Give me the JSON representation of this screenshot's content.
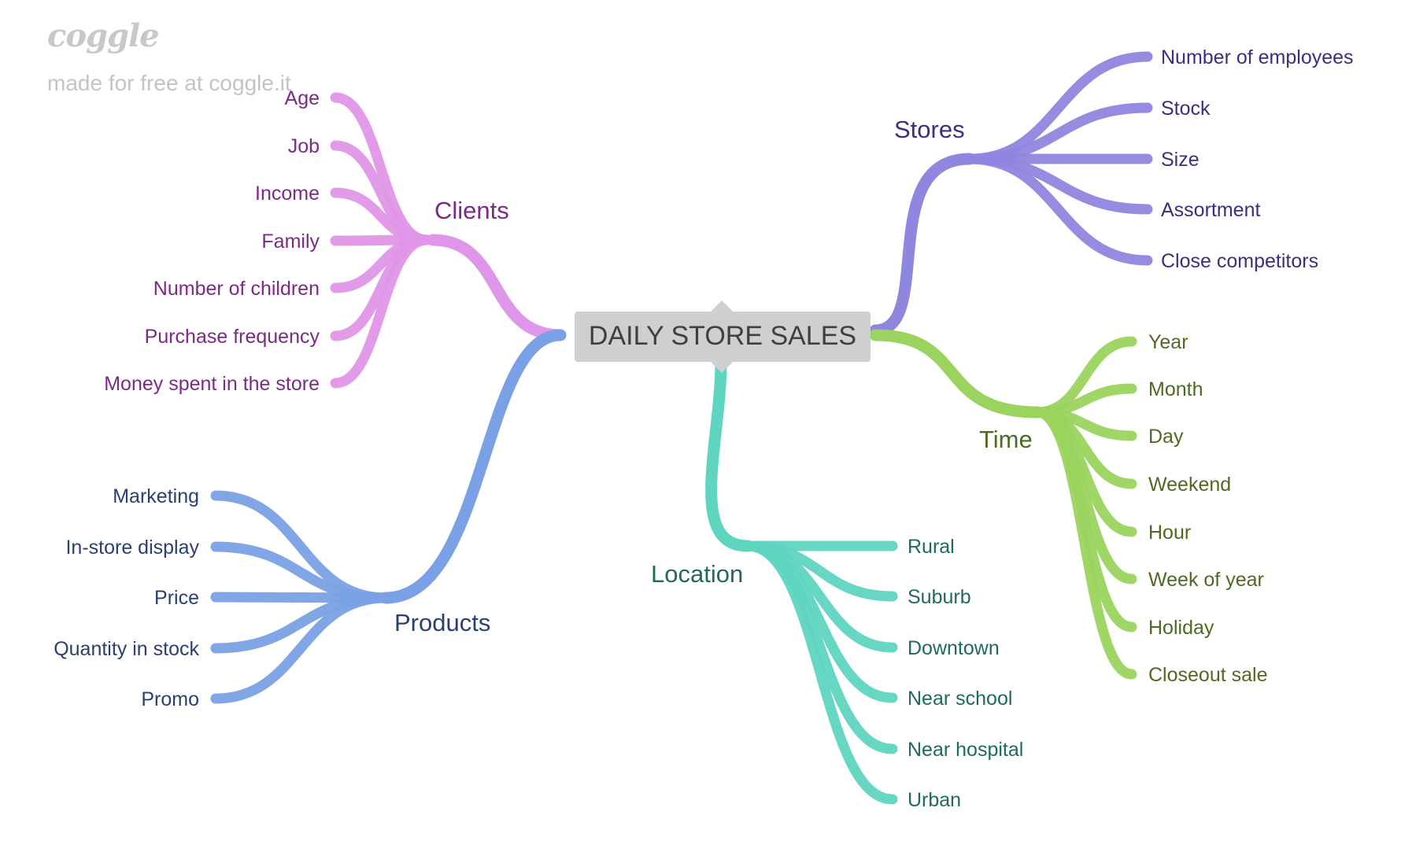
{
  "watermark": {
    "logo": "coggle",
    "note": "made for free at coggle.it"
  },
  "root": {
    "label": "DAILY STORE SALES"
  },
  "branches": {
    "clients": {
      "label": "Clients",
      "color": "#df96e8",
      "text_color": "#7b2a86",
      "items": [
        "Age",
        "Job",
        "Income",
        "Family",
        "Number of children",
        "Purchase frequency",
        "Money spent in the store"
      ]
    },
    "products": {
      "label": "Products",
      "color": "#7aa1e5",
      "text_color": "#2a3f72",
      "items": [
        "Marketing",
        "In-store display",
        "Price",
        "Quantity in stock",
        "Promo"
      ]
    },
    "location": {
      "label": "Location",
      "color": "#5fd5c0",
      "text_color": "#1e6b5e",
      "items": [
        "Rural",
        "Suburb",
        "Downtown",
        "Near school",
        "Near hospital",
        "Urban"
      ]
    },
    "stores": {
      "label": "Stores",
      "color": "#8f86e0",
      "text_color": "#3a2f80",
      "items": [
        "Number of employees",
        "Stock",
        "Size",
        "Assortment",
        "Close competitors"
      ]
    },
    "time": {
      "label": "Time",
      "color": "#9ad45e",
      "text_color": "#4e6a22",
      "items": [
        "Year",
        "Month",
        "Day",
        "Weekend",
        "Hour",
        "Week of year",
        "Holiday",
        "Closeout sale"
      ]
    }
  }
}
